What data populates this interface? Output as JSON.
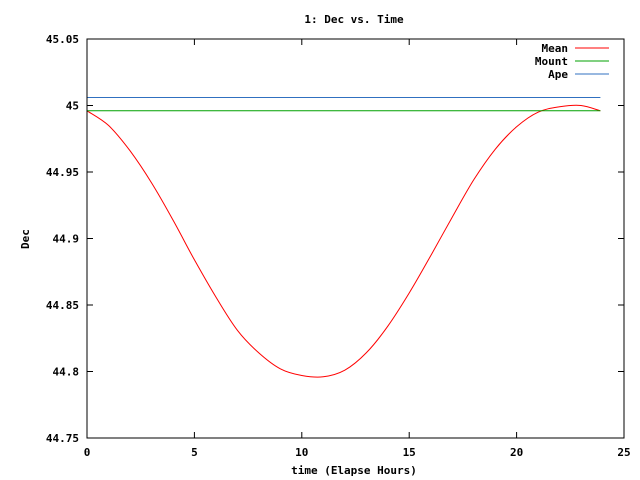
{
  "chart_data": {
    "type": "line",
    "title": "1: Dec vs. Time",
    "xlabel": "time (Elapse Hours)",
    "ylabel": "Dec",
    "xlim": [
      0,
      25
    ],
    "ylim": [
      44.75,
      45.05
    ],
    "grid": false,
    "legend_position": "top-right",
    "x_ticks": [
      {
        "value": 0,
        "label": "0"
      },
      {
        "value": 5,
        "label": "5"
      },
      {
        "value": 10,
        "label": "10"
      },
      {
        "value": 15,
        "label": "15"
      },
      {
        "value": 20,
        "label": "20"
      },
      {
        "value": 25,
        "label": "25"
      }
    ],
    "y_ticks": [
      {
        "value": 44.75,
        "label": "44.75"
      },
      {
        "value": 44.8,
        "label": "44.8"
      },
      {
        "value": 44.85,
        "label": "44.85"
      },
      {
        "value": 44.9,
        "label": "44.9"
      },
      {
        "value": 44.95,
        "label": "44.95"
      },
      {
        "value": 45,
        "label": "45"
      },
      {
        "value": 45.05,
        "label": "45.05"
      }
    ],
    "series": [
      {
        "name": "Mean",
        "color": "#ff0000",
        "x": [
          0,
          1,
          2,
          3,
          4,
          5,
          6,
          7,
          8,
          9,
          10,
          11,
          12,
          13,
          14,
          15,
          16,
          17,
          18,
          19,
          20,
          21,
          22,
          23,
          23.9
        ],
        "y": [
          44.996,
          44.985,
          44.966,
          44.942,
          44.914,
          44.884,
          44.856,
          44.831,
          44.814,
          44.802,
          44.797,
          44.796,
          44.801,
          44.814,
          44.834,
          44.859,
          44.887,
          44.916,
          44.944,
          44.967,
          44.984,
          44.995,
          44.999,
          45.0,
          44.996
        ]
      },
      {
        "name": "Mount",
        "color": "#00a000",
        "x": [
          0,
          23.9
        ],
        "y": [
          44.996,
          44.996
        ]
      },
      {
        "name": "Ape",
        "color": "#3070c0",
        "x": [
          0,
          23.9
        ],
        "y": [
          45.006,
          45.006
        ]
      }
    ]
  }
}
